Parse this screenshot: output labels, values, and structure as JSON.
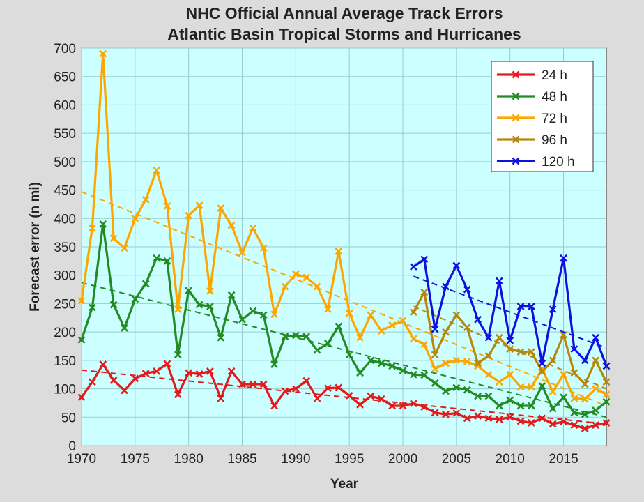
{
  "chart_data": {
    "type": "line",
    "title": [
      "NHC Official Annual Average Track Errors",
      "Atlantic Basin Tropical Storms and Hurricanes"
    ],
    "xlabel": "Year",
    "ylabel": "Forecast error (n mi)",
    "xlim": [
      1970,
      2019
    ],
    "ylim": [
      0,
      700
    ],
    "xticks": [
      1970,
      1975,
      1980,
      1985,
      1990,
      1995,
      2000,
      2005,
      2010,
      2015
    ],
    "yticks": [
      0,
      50,
      100,
      150,
      200,
      250,
      300,
      350,
      400,
      450,
      500,
      550,
      600,
      650,
      700
    ],
    "grid": true,
    "legend_position": "top-right",
    "background_color": "#ccffff",
    "series": [
      {
        "name": "24 h",
        "color": "#e31a1c",
        "x_start": 1970,
        "values": [
          85,
          112,
          143,
          115,
          97,
          118,
          127,
          131,
          144,
          90,
          128,
          126,
          131,
          83,
          131,
          108,
          108,
          108,
          70,
          96,
          100,
          114,
          83,
          101,
          102,
          88,
          72,
          87,
          82,
          70,
          70,
          74,
          68,
          58,
          55,
          57,
          48,
          52,
          48,
          46,
          50,
          43,
          40,
          48,
          38,
          42,
          36,
          30,
          36,
          40
        ],
        "trend": [
          133,
          38
        ]
      },
      {
        "name": "48 h",
        "color": "#228b22",
        "x_start": 1970,
        "values": [
          186,
          243,
          390,
          248,
          207,
          258,
          285,
          330,
          325,
          160,
          273,
          248,
          245,
          190,
          265,
          222,
          237,
          230,
          143,
          192,
          194,
          192,
          168,
          180,
          210,
          160,
          128,
          150,
          145,
          140,
          132,
          125,
          124,
          110,
          96,
          102,
          98,
          87,
          87,
          70,
          80,
          70,
          70,
          105,
          65,
          85,
          58,
          55,
          62,
          77
        ],
        "trend": [
          287,
          50
        ]
      },
      {
        "name": "72 h",
        "color": "#ffa500",
        "x_start": 1970,
        "values": [
          255,
          383,
          690,
          365,
          348,
          400,
          433,
          485,
          422,
          240,
          405,
          423,
          272,
          418,
          388,
          340,
          383,
          348,
          231,
          280,
          302,
          296,
          280,
          240,
          342,
          233,
          190,
          230,
          202,
          212,
          220,
          188,
          178,
          135,
          145,
          150,
          148,
          140,
          125,
          112,
          125,
          103,
          103,
          135,
          95,
          125,
          83,
          82,
          100,
          90
        ],
        "trend": [
          447,
          70
        ]
      },
      {
        "name": "96 h",
        "color": "#b8860b",
        "x_start": 2001,
        "values": [
          235,
          270,
          160,
          200,
          230,
          208,
          145,
          158,
          190,
          170,
          165,
          165,
          130,
          150,
          195,
          128,
          108,
          150,
          112
        ],
        "trend": [
          245,
          100
        ]
      },
      {
        "name": "120 h",
        "color": "#1010e0",
        "x_start": 2001,
        "values": [
          315,
          328,
          205,
          280,
          317,
          275,
          222,
          190,
          290,
          185,
          245,
          245,
          145,
          240,
          330,
          170,
          150,
          190,
          140
        ],
        "trend": [
          298,
          172
        ]
      }
    ]
  }
}
